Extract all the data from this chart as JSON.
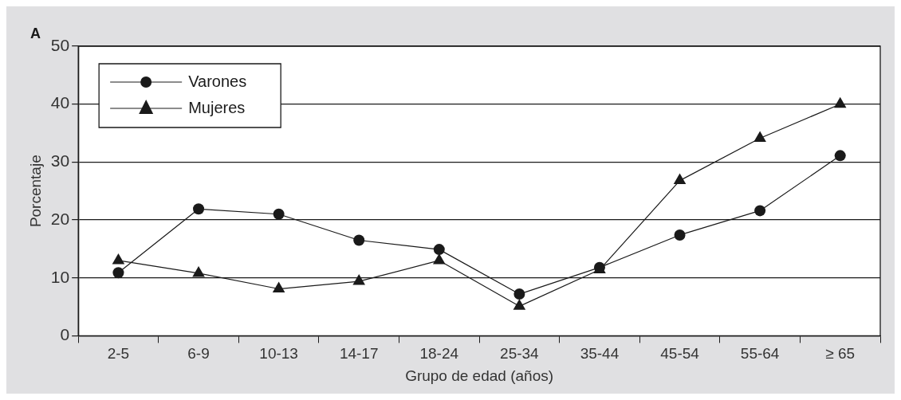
{
  "chart_data": {
    "type": "line",
    "xlabel": "Grupo de edad (años)",
    "ylabel": "Porcentaje",
    "annotations": [
      "A"
    ],
    "categories": [
      "2-5",
      "6-9",
      "10-13",
      "14-17",
      "18-24",
      "25-34",
      "35-44",
      "45-54",
      "55-64",
      "≥ 65"
    ],
    "series": [
      {
        "name": "Varones",
        "color": "#1a1a1a",
        "marker": "circle",
        "values": [
          10.9,
          21.9,
          21.0,
          16.5,
          14.9,
          7.2,
          11.8,
          17.4,
          21.6,
          31.1
        ]
      },
      {
        "name": "Mujeres",
        "color": "#1a1a1a",
        "marker": "triangle",
        "values": [
          13.0,
          10.8,
          8.1,
          9.4,
          13.0,
          5.1,
          11.4,
          26.8,
          34.1,
          40.0
        ]
      }
    ],
    "ylim": [
      0,
      50
    ],
    "yticks": [
      0,
      10,
      20,
      30,
      40,
      50
    ],
    "grid": "y",
    "legend": "top left",
    "line_style": "solid"
  }
}
